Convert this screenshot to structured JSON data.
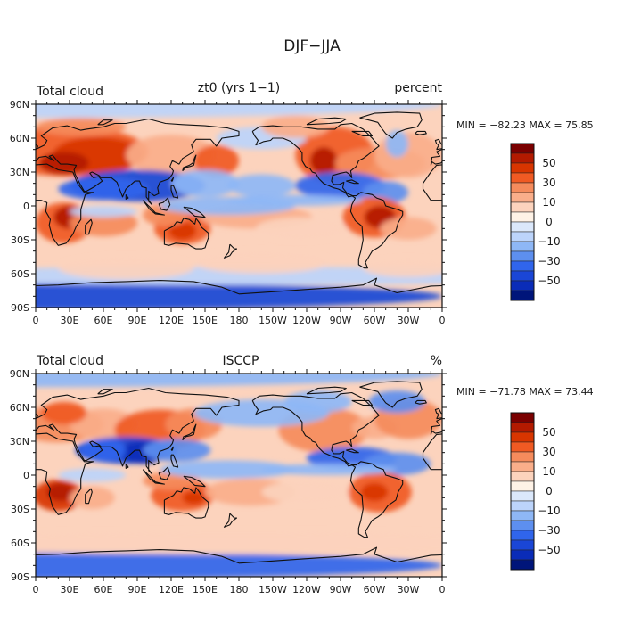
{
  "figure": {
    "title": "DJF−JJA"
  },
  "colors": {
    "scale": [
      "#7a0000",
      "#b31a00",
      "#d83500",
      "#f05a23",
      "#f58b5c",
      "#faae8a",
      "#fcd3bd",
      "#fef2e6",
      "#dbe8fb",
      "#bcd4fb",
      "#8eb7f6",
      "#5d8fef",
      "#3065ec",
      "#1a46d6",
      "#0a2cb8",
      "#00157a"
    ],
    "coast": "#111111",
    "frame": "#111111"
  },
  "axes": {
    "lat_ticks": [
      "90N",
      "60N",
      "30N",
      "0",
      "30S",
      "60S",
      "90S"
    ],
    "lon_ticks": [
      "0",
      "30E",
      "60E",
      "90E",
      "120E",
      "150E",
      "180",
      "150W",
      "120W",
      "90W",
      "60W",
      "30W",
      "0"
    ]
  },
  "panels": [
    {
      "id": "model",
      "left_label": "Total cloud",
      "center_label": "zt0 (yrs 1−1)",
      "right_label": "percent",
      "stats": "MIN = −82.23 MAX =   75.85",
      "colorbar_labels": [
        "50",
        "30",
        "10",
        "0",
        "−10",
        "−30",
        "−50"
      ]
    },
    {
      "id": "obs",
      "left_label": "Total cloud",
      "center_label": "ISCCP",
      "right_label": "%",
      "stats": "MIN = −71.78 MAX =   73.44",
      "colorbar_labels": [
        "50",
        "30",
        "10",
        "0",
        "−10",
        "−30",
        "−50"
      ]
    }
  ]
}
